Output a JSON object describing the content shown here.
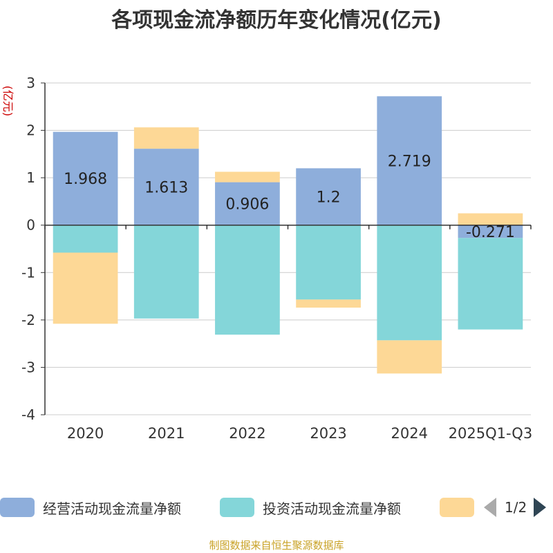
{
  "chart_data": {
    "type": "bar",
    "stacked": true,
    "title": "各项现金流净额历年变化情况(亿元)",
    "ylabel": "(亿元)",
    "xlabel": "",
    "ylim": [
      -4,
      3
    ],
    "yticks": [
      3,
      2,
      1,
      0,
      -1,
      -2,
      -3,
      -4
    ],
    "grid": true,
    "categories": [
      "2020",
      "2021",
      "2022",
      "2023",
      "2024",
      "2025Q1-Q3"
    ],
    "series": [
      {
        "name": "经营活动现金流量净额",
        "color": "#8eaedb",
        "values": [
          1.968,
          1.613,
          0.906,
          1.2,
          2.719,
          -0.271
        ],
        "labeled": true
      },
      {
        "name": "投资活动现金流量净额",
        "color": "#84d6d9",
        "values": [
          -0.58,
          -1.97,
          -2.31,
          -1.57,
          -2.43,
          -1.93
        ],
        "labeled": false
      },
      {
        "name": "",
        "color": "#fdd896",
        "values": [
          -1.5,
          0.45,
          0.22,
          -0.17,
          -0.7,
          0.25
        ],
        "labeled": false
      }
    ]
  },
  "legend": {
    "items": [
      {
        "label": "经营活动现金流量净额",
        "color": "#8eaedb"
      },
      {
        "label": "投资活动现金流量净额",
        "color": "#84d6d9"
      },
      {
        "label": "",
        "color": "#fdd896"
      }
    ],
    "pager_text": "1/2"
  },
  "source_text": "制图数据来自恒生聚源数据库"
}
